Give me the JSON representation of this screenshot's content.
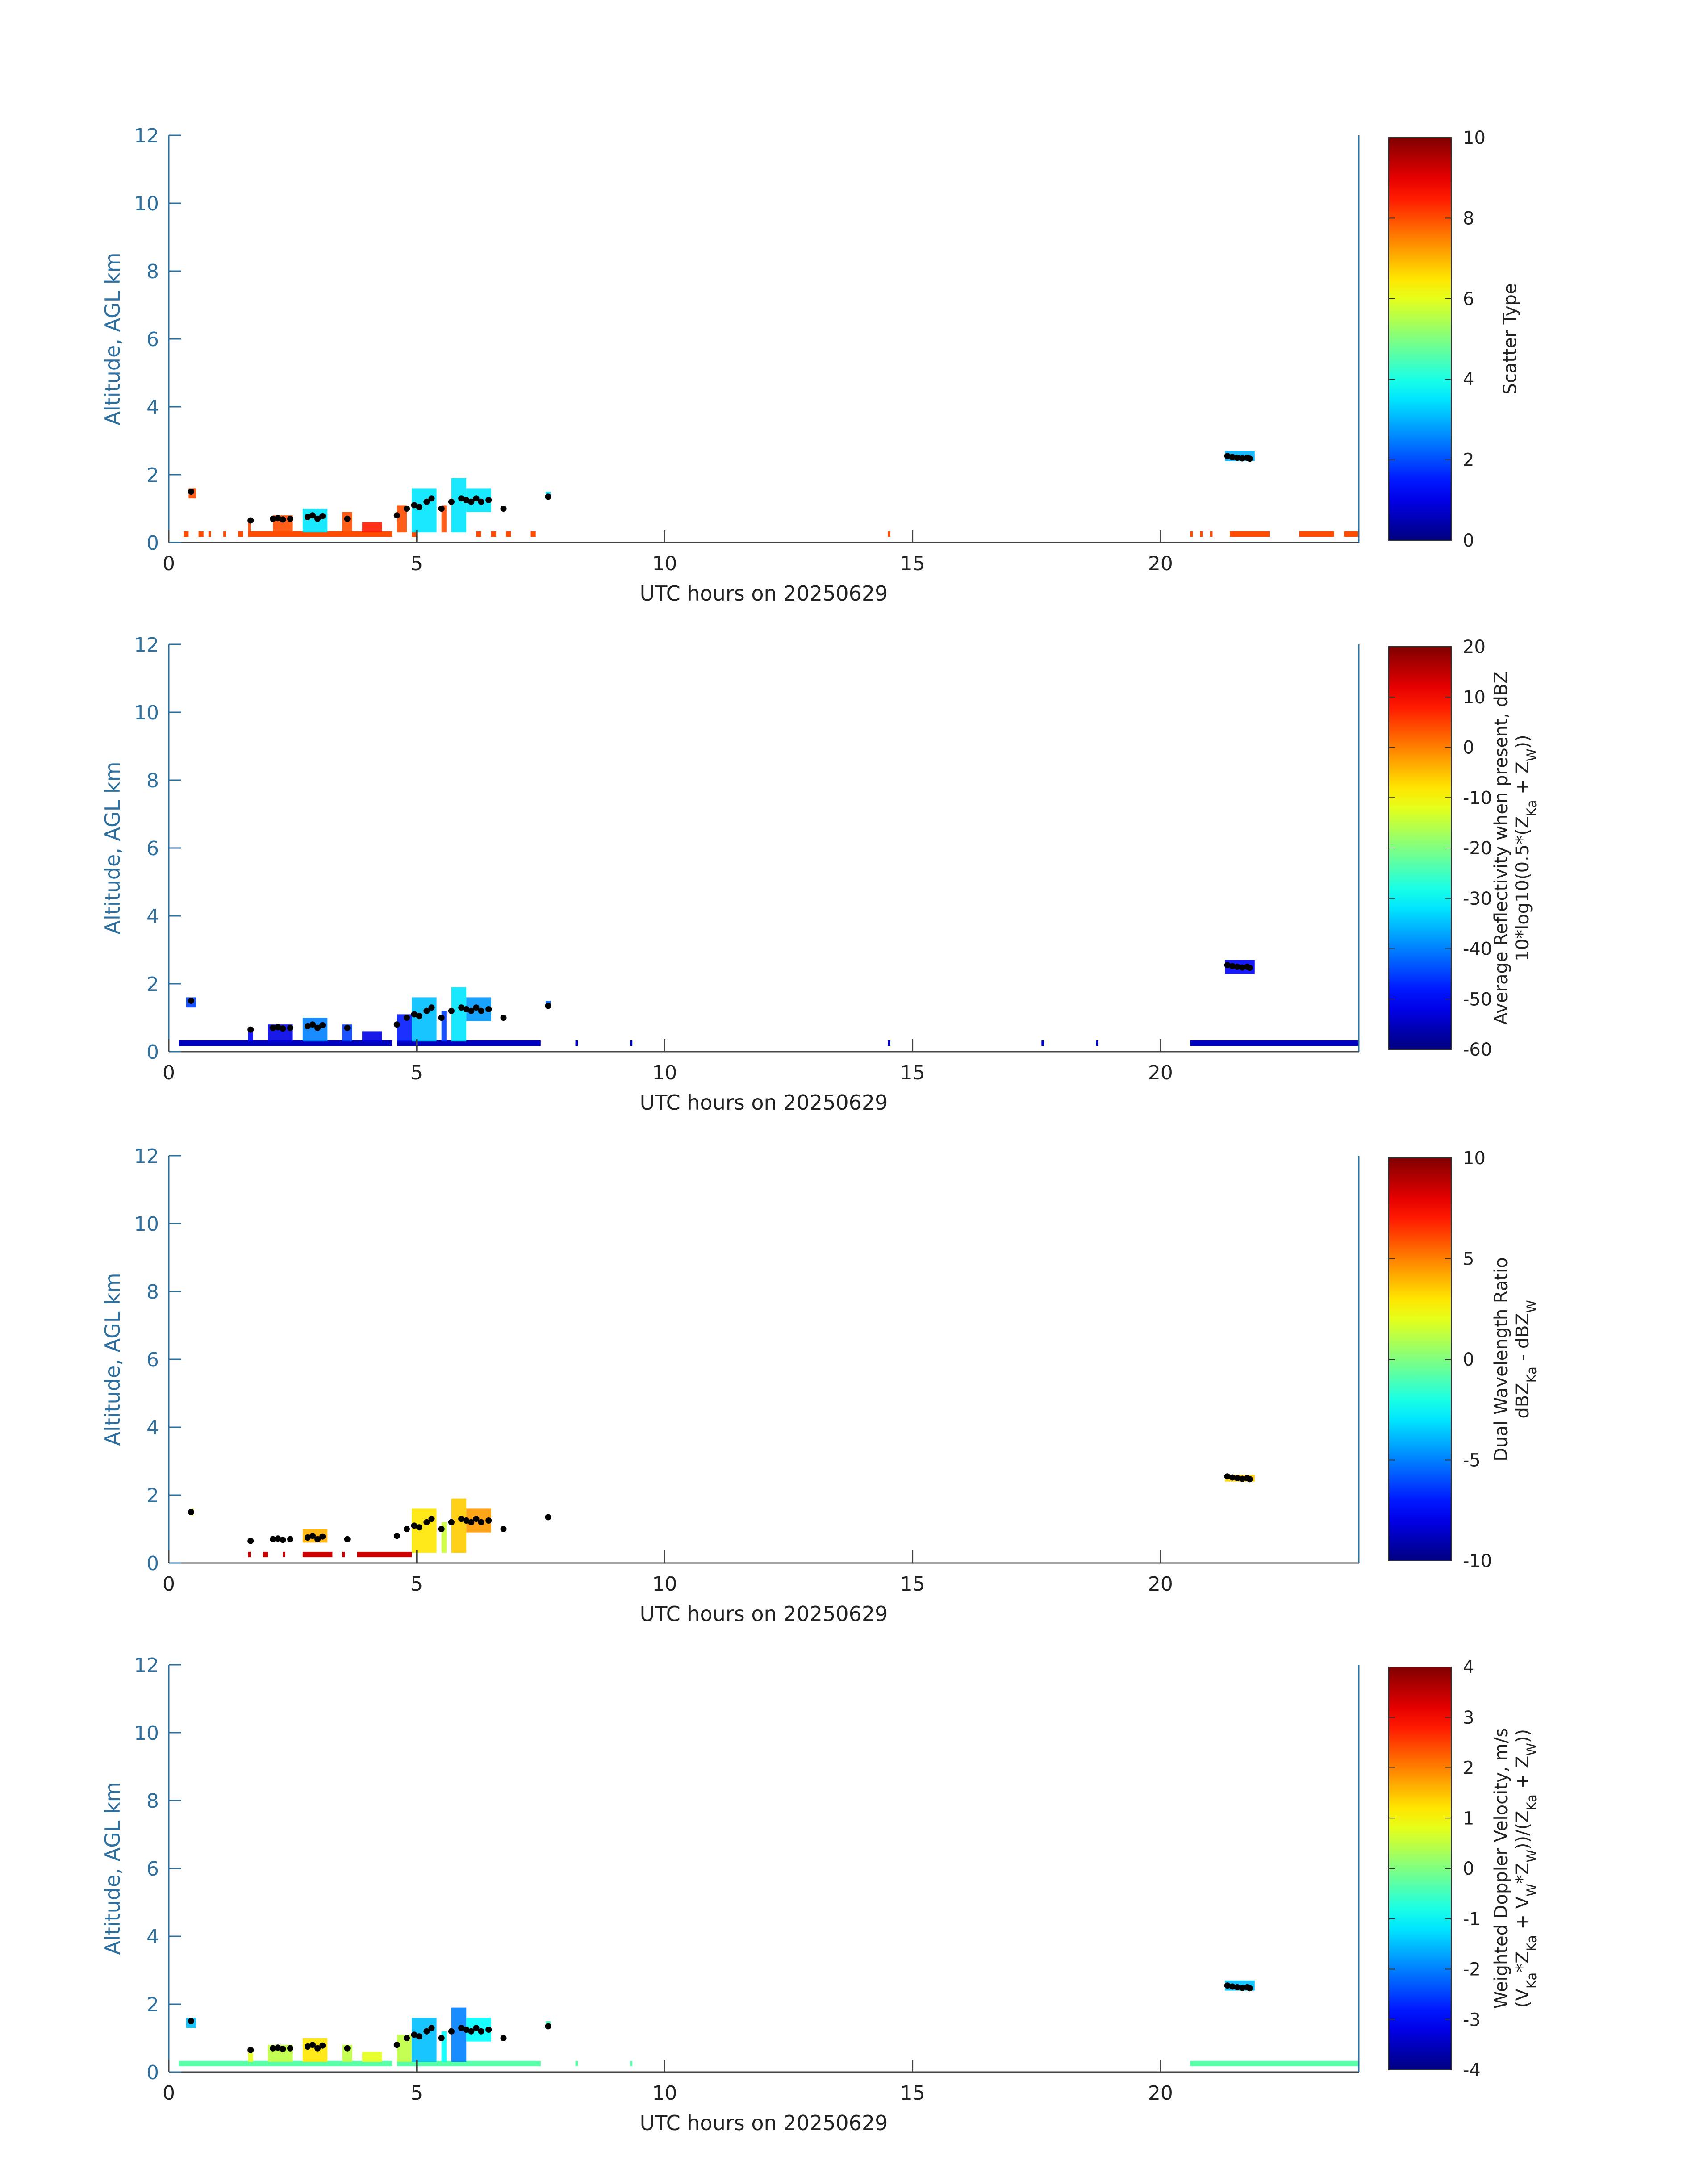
{
  "chart_data": [
    {
      "type": "heatmap",
      "xlabel": "UTC hours on 20250629",
      "ylabel": "Altitude, AGL km",
      "xlim": [
        0,
        24
      ],
      "ylim": [
        0,
        12
      ],
      "xticks": [
        0,
        5,
        10,
        15,
        20
      ],
      "yticks": [
        0,
        2,
        4,
        6,
        8,
        10,
        12
      ],
      "colorbar": {
        "label": [
          "Scatter Type"
        ],
        "min": 0,
        "max": 10,
        "ticks": [
          0,
          2,
          4,
          6,
          8,
          10
        ]
      },
      "ground_band": {
        "y": 0.25,
        "value": 8.0,
        "segments": [
          [
            0.3,
            0.4
          ],
          [
            0.6,
            0.7
          ],
          [
            0.8,
            0.85
          ],
          [
            1.1,
            1.15
          ],
          [
            1.4,
            1.5
          ],
          [
            1.6,
            4.5
          ],
          [
            4.9,
            5.0
          ],
          [
            6.2,
            6.3
          ],
          [
            6.5,
            6.6
          ],
          [
            6.8,
            6.9
          ],
          [
            7.3,
            7.4
          ],
          [
            14.5,
            14.55
          ],
          [
            20.6,
            20.65
          ],
          [
            20.8,
            20.85
          ],
          [
            21.0,
            21.05
          ],
          [
            21.4,
            22.2
          ],
          [
            22.8,
            23.5
          ],
          [
            23.7,
            24.0
          ]
        ]
      },
      "columns": [
        {
          "x0": 0.4,
          "x1": 0.55,
          "y0": 1.3,
          "y1": 1.6,
          "value": 8.0
        },
        {
          "x0": 1.6,
          "x1": 1.65,
          "y0": 0.3,
          "y1": 0.7,
          "value": 8.0
        },
        {
          "x0": 2.1,
          "x1": 2.5,
          "y0": 0.3,
          "y1": 0.8,
          "value": 8.0
        },
        {
          "x0": 2.7,
          "x1": 3.2,
          "y0": 0.3,
          "y1": 1.0,
          "value": 3.5
        },
        {
          "x0": 3.5,
          "x1": 3.7,
          "y0": 0.3,
          "y1": 0.9,
          "value": 8.0
        },
        {
          "x0": 3.9,
          "x1": 4.3,
          "y0": 0.3,
          "y1": 0.6,
          "value": 8.5
        },
        {
          "x0": 4.6,
          "x1": 4.8,
          "y0": 0.3,
          "y1": 1.1,
          "value": 8.0
        },
        {
          "x0": 4.9,
          "x1": 5.4,
          "y0": 0.3,
          "y1": 1.6,
          "value": 3.5
        },
        {
          "x0": 5.5,
          "x1": 5.6,
          "y0": 0.3,
          "y1": 1.1,
          "value": 8.0
        },
        {
          "x0": 5.7,
          "x1": 6.0,
          "y0": 0.3,
          "y1": 1.9,
          "value": 3.5
        },
        {
          "x0": 6.0,
          "x1": 6.5,
          "y0": 0.9,
          "y1": 1.6,
          "value": 3.5
        },
        {
          "x0": 7.6,
          "x1": 7.7,
          "y0": 1.3,
          "y1": 1.5,
          "value": 3.5
        },
        {
          "x0": 21.3,
          "x1": 21.9,
          "y0": 2.4,
          "y1": 2.7,
          "value": 3.0
        }
      ]
    },
    {
      "type": "heatmap",
      "xlabel": "UTC hours on 20250629",
      "ylabel": "Altitude, AGL km",
      "xlim": [
        0,
        24
      ],
      "ylim": [
        0,
        12
      ],
      "xticks": [
        0,
        5,
        10,
        15,
        20
      ],
      "yticks": [
        0,
        2,
        4,
        6,
        8,
        10,
        12
      ],
      "colorbar": {
        "label": [
          "Average Reflectivity when present, dBZ",
          "10*log10(0.5*(Z_Ka + Z_W))"
        ],
        "min": -60,
        "max": 20,
        "ticks": [
          -60,
          -50,
          -40,
          -30,
          -20,
          -10,
          0,
          10,
          20
        ]
      },
      "ground_band": {
        "y": 0.25,
        "value": -55,
        "segments": [
          [
            0.2,
            4.5
          ],
          [
            4.6,
            7.5
          ],
          [
            8.2,
            8.25
          ],
          [
            9.3,
            9.35
          ],
          [
            14.5,
            14.55
          ],
          [
            17.6,
            17.65
          ],
          [
            18.7,
            18.75
          ],
          [
            20.6,
            24.0
          ]
        ]
      },
      "columns": [
        {
          "x0": 0.35,
          "x1": 0.55,
          "y0": 1.3,
          "y1": 1.6,
          "value": -45
        },
        {
          "x0": 1.6,
          "x1": 1.7,
          "y0": 0.3,
          "y1": 0.7,
          "value": -50
        },
        {
          "x0": 2.0,
          "x1": 2.5,
          "y0": 0.3,
          "y1": 0.8,
          "value": -52
        },
        {
          "x0": 2.7,
          "x1": 3.2,
          "y0": 0.3,
          "y1": 1.0,
          "value": -40
        },
        {
          "x0": 3.5,
          "x1": 3.7,
          "y0": 0.3,
          "y1": 0.8,
          "value": -45
        },
        {
          "x0": 3.9,
          "x1": 4.3,
          "y0": 0.3,
          "y1": 0.6,
          "value": -52
        },
        {
          "x0": 4.6,
          "x1": 4.9,
          "y0": 0.3,
          "y1": 1.1,
          "value": -48
        },
        {
          "x0": 4.9,
          "x1": 5.4,
          "y0": 0.3,
          "y1": 1.6,
          "value": -35
        },
        {
          "x0": 5.5,
          "x1": 5.6,
          "y0": 0.3,
          "y1": 1.2,
          "value": -45
        },
        {
          "x0": 5.7,
          "x1": 6.0,
          "y0": 0.3,
          "y1": 1.9,
          "value": -32
        },
        {
          "x0": 6.0,
          "x1": 6.5,
          "y0": 0.9,
          "y1": 1.6,
          "value": -38
        },
        {
          "x0": 7.6,
          "x1": 7.7,
          "y0": 1.3,
          "y1": 1.5,
          "value": -42
        },
        {
          "x0": 21.3,
          "x1": 21.9,
          "y0": 2.3,
          "y1": 2.7,
          "value": -50
        }
      ]
    },
    {
      "type": "heatmap",
      "xlabel": "UTC hours on 20250629",
      "ylabel": "Altitude, AGL km",
      "xlim": [
        0,
        24
      ],
      "ylim": [
        0,
        12
      ],
      "xticks": [
        0,
        5,
        10,
        15,
        20
      ],
      "yticks": [
        0,
        2,
        4,
        6,
        8,
        10,
        12
      ],
      "colorbar": {
        "label": [
          "Dual Wavelength Ratio",
          "dBZ_Ka - dBZ_W"
        ],
        "min": -10,
        "max": 10,
        "ticks": [
          -10,
          -5,
          0,
          5,
          10
        ]
      },
      "ground_band": {
        "y": 0.25,
        "value": 8.5,
        "segments": [
          [
            1.6,
            1.65
          ],
          [
            1.9,
            2.0
          ],
          [
            2.3,
            2.35
          ],
          [
            2.7,
            3.3
          ],
          [
            3.5,
            3.55
          ],
          [
            3.8,
            4.9
          ]
        ]
      },
      "columns": [
        {
          "x0": 0.45,
          "x1": 0.5,
          "y0": 1.4,
          "y1": 1.6,
          "value": 3.0
        },
        {
          "x0": 2.7,
          "x1": 3.2,
          "y0": 0.6,
          "y1": 1.0,
          "value": 4.0
        },
        {
          "x0": 4.9,
          "x1": 5.4,
          "y0": 0.3,
          "y1": 1.6,
          "value": 3.0
        },
        {
          "x0": 5.5,
          "x1": 5.6,
          "y0": 0.3,
          "y1": 1.2,
          "value": 1.5
        },
        {
          "x0": 5.7,
          "x1": 6.0,
          "y0": 0.3,
          "y1": 1.9,
          "value": 3.5
        },
        {
          "x0": 6.0,
          "x1": 6.5,
          "y0": 0.9,
          "y1": 1.6,
          "value": 4.5
        },
        {
          "x0": 21.3,
          "x1": 21.9,
          "y0": 2.4,
          "y1": 2.6,
          "value": 3.5
        }
      ]
    },
    {
      "type": "heatmap",
      "xlabel": "UTC hours on 20250629",
      "ylabel": "Altitude, AGL km",
      "xlim": [
        0,
        24
      ],
      "ylim": [
        0,
        12
      ],
      "xticks": [
        0,
        5,
        10,
        15,
        20
      ],
      "yticks": [
        0,
        2,
        4,
        6,
        8,
        10,
        12
      ],
      "colorbar": {
        "label": [
          "Weighted Doppler Velocity, m/s",
          "(V_Ka*Z_Ka + V_W*Z_W))/(Z_Ka + Z_W))"
        ],
        "min": -4,
        "max": 4,
        "ticks": [
          -4,
          -3,
          -2,
          -1,
          0,
          1,
          2,
          3,
          4
        ]
      },
      "ground_band": {
        "y": 0.25,
        "value": -0.3,
        "segments": [
          [
            0.2,
            4.5
          ],
          [
            4.6,
            7.5
          ],
          [
            8.2,
            8.25
          ],
          [
            9.3,
            9.35
          ],
          [
            20.6,
            24.0
          ]
        ]
      },
      "columns": [
        {
          "x0": 0.35,
          "x1": 0.55,
          "y0": 1.3,
          "y1": 1.6,
          "value": -1.5
        },
        {
          "x0": 1.6,
          "x1": 1.7,
          "y0": 0.3,
          "y1": 0.7,
          "value": 0.8
        },
        {
          "x0": 2.0,
          "x1": 2.5,
          "y0": 0.3,
          "y1": 0.8,
          "value": 0.5
        },
        {
          "x0": 2.7,
          "x1": 3.2,
          "y0": 0.3,
          "y1": 1.0,
          "value": 1.2
        },
        {
          "x0": 3.5,
          "x1": 3.7,
          "y0": 0.3,
          "y1": 0.8,
          "value": 0.5
        },
        {
          "x0": 3.9,
          "x1": 4.3,
          "y0": 0.3,
          "y1": 0.6,
          "value": 0.8
        },
        {
          "x0": 4.6,
          "x1": 4.9,
          "y0": 0.3,
          "y1": 1.1,
          "value": 0.5
        },
        {
          "x0": 4.9,
          "x1": 5.4,
          "y0": 0.3,
          "y1": 1.6,
          "value": -1.5
        },
        {
          "x0": 5.5,
          "x1": 5.6,
          "y0": 0.3,
          "y1": 1.2,
          "value": -1.0
        },
        {
          "x0": 5.7,
          "x1": 6.0,
          "y0": 0.3,
          "y1": 1.9,
          "value": -2.0
        },
        {
          "x0": 6.0,
          "x1": 6.5,
          "y0": 0.9,
          "y1": 1.6,
          "value": -1.0
        },
        {
          "x0": 7.6,
          "x1": 7.7,
          "y0": 1.3,
          "y1": 1.5,
          "value": -0.5
        },
        {
          "x0": 21.3,
          "x1": 21.9,
          "y0": 2.4,
          "y1": 2.7,
          "value": -1.5
        }
      ]
    }
  ],
  "cloud_base_markers": {
    "x": [
      0.45,
      1.65,
      2.1,
      2.2,
      2.3,
      2.45,
      2.8,
      2.9,
      3.0,
      3.1,
      3.6,
      4.6,
      4.8,
      4.95,
      5.05,
      5.2,
      5.3,
      5.5,
      5.7,
      5.9,
      6.0,
      6.1,
      6.2,
      6.3,
      6.45,
      6.75,
      7.65,
      21.35,
      21.45,
      21.55,
      21.65,
      21.75,
      21.8
    ],
    "y": [
      1.5,
      0.65,
      0.7,
      0.72,
      0.68,
      0.7,
      0.75,
      0.8,
      0.7,
      0.78,
      0.7,
      0.8,
      1.0,
      1.1,
      1.05,
      1.2,
      1.3,
      1.0,
      1.2,
      1.3,
      1.25,
      1.2,
      1.3,
      1.2,
      1.25,
      1.0,
      1.35,
      2.55,
      2.52,
      2.5,
      2.48,
      2.5,
      2.47
    ]
  },
  "colors": {
    "axis": "#2e6f9e",
    "tick_text": "#222222",
    "marker": "#000000"
  }
}
